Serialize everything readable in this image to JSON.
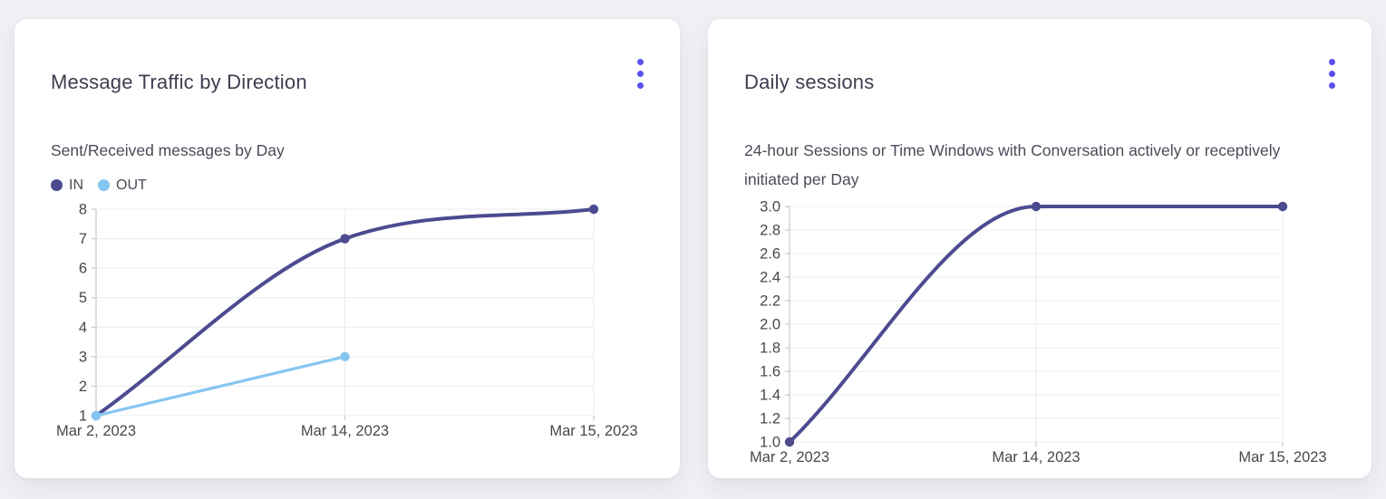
{
  "chart_data": [
    {
      "type": "line",
      "title": "Message Traffic by Direction",
      "subtitle": "Sent/Received messages by Day",
      "categories": [
        "Mar 2, 2023",
        "Mar 14, 2023",
        "Mar 15, 2023"
      ],
      "series": [
        {
          "name": "IN",
          "color": "#4c4b90",
          "values": [
            1,
            7,
            8
          ]
        },
        {
          "name": "OUT",
          "color": "#85c6f1",
          "values": [
            1,
            3,
            null
          ]
        }
      ],
      "ylim": [
        1,
        8
      ],
      "y_tick_step": 1,
      "y_tick_decimals": 0,
      "grid": true,
      "legend_position": "top-left",
      "line_style": "smooth"
    },
    {
      "type": "line",
      "title": "Daily sessions",
      "subtitle": "24-hour Sessions or Time Windows with Conversation actively or receptively initiated per Day",
      "categories": [
        "Mar 2, 2023",
        "Mar 14, 2023",
        "Mar 15, 2023"
      ],
      "series": [
        {
          "name": "Daily sessions",
          "color": "#4c4b90",
          "values": [
            1.0,
            3.0,
            3.0
          ]
        }
      ],
      "ylim": [
        1.0,
        3.0
      ],
      "y_tick_step": 0.2,
      "y_tick_decimals": 1,
      "grid": true,
      "legend_position": "none",
      "line_style": "smooth"
    }
  ],
  "icons": {
    "card_menu": "kebab-menu-icon"
  },
  "colors": {
    "accent": "#5a4ff1",
    "series_in": "#4c4b90",
    "series_out": "#85c6f1",
    "grid_line": "#ececef",
    "axis_line": "#c7c7cf",
    "tick_text": "#48474f",
    "card_background": "#ffffff",
    "page_background": "#eff0f4"
  }
}
